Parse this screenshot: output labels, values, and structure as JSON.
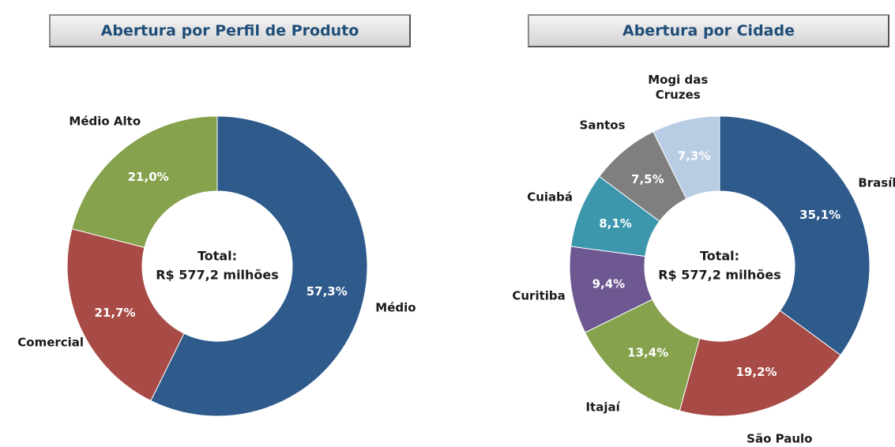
{
  "chart_data": [
    {
      "type": "donut",
      "title": "Abertura por Perfil de Produto",
      "categories": [
        "Médio",
        "Comercial",
        "Médio Alto"
      ],
      "values": [
        57.3,
        21.7,
        21.0
      ],
      "value_labels": [
        "57,3%",
        "21,7%",
        "21,0%"
      ],
      "colors": [
        "#2e5a8c",
        "#a84a45",
        "#86a24d"
      ],
      "annotations": [
        "Total:",
        "R$ 577,2 milhões"
      ]
    },
    {
      "type": "donut",
      "title": "Abertura por Cidade",
      "categories": [
        "Brasília",
        "São Paulo",
        "Itajaí",
        "Curitiba",
        "Cuiabá",
        "Santos",
        "Mogi das Cruzes"
      ],
      "values": [
        35.1,
        19.2,
        13.4,
        9.4,
        8.1,
        7.5,
        7.3
      ],
      "value_labels": [
        "35,1%",
        "19,2%",
        "13,4%",
        "9,4%",
        "8,1%",
        "7,5%",
        "7,3%"
      ],
      "colors": [
        "#2e5a8c",
        "#a84a45",
        "#86a24d",
        "#6e5892",
        "#3c97ad",
        "#7f7f7f",
        "#b8cce4"
      ],
      "annotations": [
        "Total:",
        "R$ 577,2 milhões"
      ]
    }
  ]
}
